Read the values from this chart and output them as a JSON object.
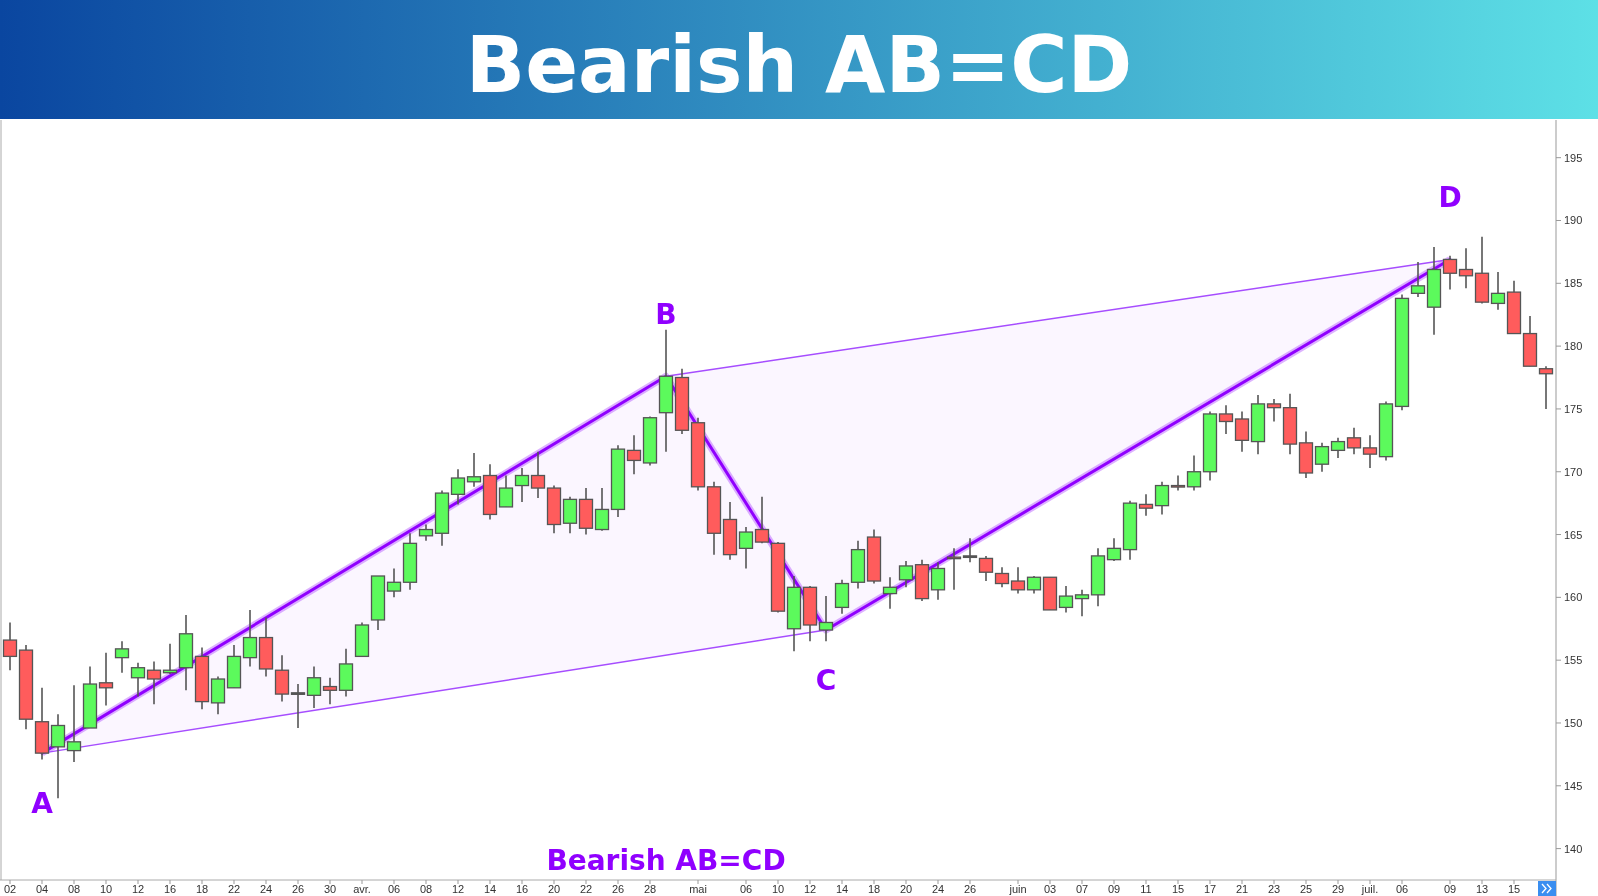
{
  "chart_data": {
    "type": "candlestick",
    "title": "Bearish AB=CD",
    "categories": [
      "02",
      null,
      "04",
      null,
      "08",
      null,
      "10",
      null,
      "12",
      null,
      "16",
      null,
      "18",
      null,
      "22",
      null,
      "24",
      null,
      "26",
      null,
      "30",
      null,
      "avr.",
      null,
      "06",
      null,
      "08",
      null,
      "12",
      null,
      "14",
      null,
      "16",
      null,
      "20",
      null,
      "22",
      null,
      "26",
      null,
      "28",
      null,
      null,
      "mai",
      null,
      null,
      "06",
      null,
      "10",
      null,
      "12",
      null,
      "14",
      null,
      "18",
      null,
      "20",
      null,
      "24",
      null,
      "26",
      null,
      null,
      "juin",
      null,
      "03",
      null,
      "07",
      null,
      "09",
      null,
      "11",
      null,
      "15",
      null,
      "17",
      null,
      "21",
      null,
      "23",
      null,
      "25",
      null,
      "29",
      null,
      "juil.",
      null,
      "06",
      null,
      null,
      "09",
      null,
      "13",
      null,
      "15",
      null,
      null
    ],
    "ohlc": [
      [
        156.6,
        158.0,
        154.2,
        155.3
      ],
      [
        155.8,
        156.2,
        149.5,
        150.3
      ],
      [
        150.1,
        152.8,
        147.1,
        147.6
      ],
      [
        148.1,
        150.7,
        144.0,
        149.8
      ],
      [
        147.8,
        153.0,
        146.9,
        148.5
      ],
      [
        149.6,
        154.5,
        149.6,
        153.1
      ],
      [
        153.2,
        155.6,
        151.4,
        152.8
      ],
      [
        155.2,
        156.5,
        154.0,
        155.9
      ],
      [
        153.6,
        154.8,
        152.1,
        154.4
      ],
      [
        154.2,
        154.9,
        151.5,
        153.5
      ],
      [
        154.0,
        156.3,
        153.9,
        154.2
      ],
      [
        154.4,
        158.6,
        152.6,
        157.1
      ],
      [
        155.3,
        156.0,
        151.1,
        151.7
      ],
      [
        151.6,
        153.7,
        150.7,
        153.5
      ],
      [
        152.8,
        156.2,
        152.8,
        155.3
      ],
      [
        155.2,
        159.0,
        154.5,
        156.8
      ],
      [
        156.8,
        158.4,
        153.7,
        154.3
      ],
      [
        154.2,
        155.4,
        151.7,
        152.3
      ],
      [
        152.4,
        153.1,
        149.6,
        152.4
      ],
      [
        152.2,
        154.5,
        151.2,
        153.6
      ],
      [
        152.9,
        153.6,
        151.5,
        152.6
      ],
      [
        152.6,
        155.9,
        152.1,
        154.7
      ],
      [
        155.3,
        158.0,
        155.3,
        157.8
      ],
      [
        158.2,
        161.7,
        157.4,
        161.7
      ],
      [
        160.5,
        162.3,
        160.0,
        161.2
      ],
      [
        161.2,
        165.1,
        160.6,
        164.3
      ],
      [
        164.9,
        165.8,
        164.5,
        165.4
      ],
      [
        165.1,
        168.5,
        164.1,
        168.3
      ],
      [
        168.2,
        170.2,
        167.4,
        169.5
      ],
      [
        169.2,
        171.5,
        168.8,
        169.6
      ],
      [
        169.7,
        170.6,
        166.2,
        166.6
      ],
      [
        167.2,
        169.7,
        167.2,
        168.7
      ],
      [
        168.9,
        170.3,
        167.6,
        169.7
      ],
      [
        169.7,
        171.6,
        167.9,
        168.7
      ],
      [
        168.7,
        168.9,
        165.1,
        165.8
      ],
      [
        165.9,
        168.0,
        165.1,
        167.8
      ],
      [
        167.8,
        168.7,
        165.0,
        165.5
      ],
      [
        165.4,
        168.7,
        165.3,
        167.0
      ],
      [
        167.0,
        172.1,
        166.4,
        171.8
      ],
      [
        171.7,
        172.9,
        169.8,
        170.9
      ],
      [
        170.7,
        174.4,
        170.5,
        174.3
      ],
      [
        174.7,
        181.3,
        171.6,
        177.6
      ],
      [
        177.5,
        178.2,
        173.0,
        173.3
      ],
      [
        173.9,
        174.3,
        168.5,
        168.8
      ],
      [
        168.8,
        169.2,
        163.4,
        165.1
      ],
      [
        166.2,
        167.6,
        163.0,
        163.4
      ],
      [
        163.9,
        165.6,
        162.3,
        165.2
      ],
      [
        165.4,
        168.0,
        164.3,
        164.4
      ],
      [
        164.3,
        164.4,
        158.8,
        158.9
      ],
      [
        157.5,
        161.7,
        155.7,
        160.8
      ],
      [
        160.8,
        160.9,
        156.5,
        157.8
      ],
      [
        157.4,
        160.1,
        156.5,
        158.0
      ],
      [
        159.2,
        161.4,
        158.7,
        161.1
      ],
      [
        161.2,
        164.5,
        160.7,
        163.8
      ],
      [
        164.8,
        165.4,
        161.1,
        161.3
      ],
      [
        160.3,
        161.6,
        159.1,
        160.8
      ],
      [
        161.4,
        162.9,
        160.8,
        162.5
      ],
      [
        162.6,
        163.0,
        159.7,
        159.9
      ],
      [
        160.6,
        162.8,
        159.8,
        162.3
      ],
      [
        163.2,
        163.9,
        160.6,
        163.1
      ],
      [
        163.3,
        164.7,
        162.8,
        163.3
      ],
      [
        163.1,
        163.3,
        161.3,
        162.0
      ],
      [
        161.9,
        162.4,
        160.8,
        161.1
      ],
      [
        161.3,
        162.4,
        160.3,
        160.6
      ],
      [
        160.6,
        161.7,
        160.3,
        161.6
      ],
      [
        161.6,
        161.6,
        159.0,
        159.0
      ],
      [
        159.2,
        160.9,
        158.8,
        160.1
      ],
      [
        159.9,
        160.6,
        158.5,
        160.2
      ],
      [
        160.2,
        163.9,
        159.3,
        163.3
      ],
      [
        163.0,
        164.7,
        162.9,
        163.9
      ],
      [
        163.8,
        167.7,
        163.0,
        167.5
      ],
      [
        167.4,
        168.2,
        166.5,
        167.1
      ],
      [
        167.3,
        169.2,
        166.6,
        168.9
      ],
      [
        168.9,
        169.7,
        168.5,
        168.8
      ],
      [
        168.8,
        171.3,
        168.5,
        170.0
      ],
      [
        170.0,
        174.8,
        169.3,
        174.6
      ],
      [
        174.6,
        175.3,
        173.0,
        174.0
      ],
      [
        174.2,
        174.8,
        171.6,
        172.5
      ],
      [
        172.4,
        176.1,
        171.4,
        175.4
      ],
      [
        175.4,
        175.8,
        174.0,
        175.1
      ],
      [
        175.1,
        176.2,
        171.4,
        172.2
      ],
      [
        172.3,
        173.2,
        169.5,
        169.9
      ],
      [
        170.6,
        172.3,
        170.0,
        172.0
      ],
      [
        171.7,
        172.7,
        171.1,
        172.4
      ],
      [
        172.7,
        173.5,
        171.4,
        171.9
      ],
      [
        171.9,
        172.9,
        170.3,
        171.4
      ],
      [
        171.2,
        175.6,
        170.9,
        175.4
      ],
      [
        175.2,
        184.1,
        174.9,
        183.8
      ],
      [
        184.2,
        186.7,
        183.9,
        184.8
      ],
      [
        183.1,
        187.9,
        180.9,
        186.1
      ],
      [
        186.9,
        187.2,
        184.5,
        185.8
      ],
      [
        186.1,
        187.8,
        184.6,
        185.6
      ],
      [
        185.8,
        188.7,
        183.4,
        183.5
      ],
      [
        183.4,
        185.9,
        182.9,
        184.2
      ],
      [
        184.3,
        185.2,
        181.0,
        181.0
      ],
      [
        181.0,
        182.4,
        178.4,
        178.4
      ],
      [
        178.2,
        178.4,
        175.0,
        177.8
      ]
    ],
    "colors": [
      "#ff5c5c",
      "#ff5c5c",
      "#ff5c5c",
      "#5cfa5c",
      "#5cfa5c",
      "#5cfa5c",
      "#ff5c5c",
      "#5cfa5c",
      "#5cfa5c",
      "#ff5c5c",
      "#5cfa5c",
      "#5cfa5c",
      "#ff5c5c",
      "#5cfa5c",
      "#5cfa5c",
      "#5cfa5c",
      "#ff5c5c",
      "#ff5c5c",
      "#555555",
      "#5cfa5c",
      "#ff5c5c",
      "#5cfa5c",
      "#5cfa5c",
      "#5cfa5c",
      "#5cfa5c",
      "#5cfa5c",
      "#5cfa5c",
      "#5cfa5c",
      "#5cfa5c",
      "#5cfa5c",
      "#ff5c5c",
      "#5cfa5c",
      "#5cfa5c",
      "#ff5c5c",
      "#ff5c5c",
      "#5cfa5c",
      "#ff5c5c",
      "#5cfa5c",
      "#5cfa5c",
      "#ff5c5c",
      "#5cfa5c",
      "#5cfa5c",
      "#ff5c5c",
      "#ff5c5c",
      "#ff5c5c",
      "#ff5c5c",
      "#5cfa5c",
      "#ff5c5c",
      "#ff5c5c",
      "#5cfa5c",
      "#ff5c5c",
      "#5cfa5c",
      "#5cfa5c",
      "#5cfa5c",
      "#ff5c5c",
      "#5cfa5c",
      "#5cfa5c",
      "#ff5c5c",
      "#5cfa5c",
      "#ff5c5c",
      "#555555",
      "#ff5c5c",
      "#ff5c5c",
      "#ff5c5c",
      "#5cfa5c",
      "#ff5c5c",
      "#5cfa5c",
      "#5cfa5c",
      "#5cfa5c",
      "#5cfa5c",
      "#5cfa5c",
      "#ff5c5c",
      "#5cfa5c",
      "#ff5c5c",
      "#5cfa5c",
      "#5cfa5c",
      "#ff5c5c",
      "#ff5c5c",
      "#5cfa5c",
      "#ff5c5c",
      "#ff5c5c",
      "#ff5c5c",
      "#5cfa5c",
      "#5cfa5c",
      "#ff5c5c",
      "#ff5c5c",
      "#5cfa5c",
      "#5cfa5c",
      "#5cfa5c",
      "#5cfa5c",
      "#ff5c5c",
      "#ff5c5c",
      "#ff5c5c",
      "#5cfa5c",
      "#ff5c5c",
      "#ff5c5c",
      "#ff5c5c"
    ],
    "series": [
      {
        "type": "line",
        "color": "#9000ff",
        "values": [
          null,
          null,
          147.6,
          null,
          null,
          null,
          null,
          null,
          null,
          null,
          null,
          null,
          null,
          null,
          null,
          null,
          null,
          null,
          null,
          null,
          null,
          null,
          null,
          null,
          null,
          null,
          null,
          null,
          null,
          null,
          null,
          null,
          null,
          null,
          null,
          null,
          null,
          null,
          null,
          null,
          null,
          177.6,
          null,
          null,
          null,
          null,
          null,
          null,
          null,
          null,
          null,
          157.4,
          null,
          null,
          null,
          null,
          null,
          null,
          null,
          null,
          null,
          null,
          null,
          null,
          null,
          null,
          null,
          null,
          null,
          null,
          null,
          null,
          null,
          null,
          null,
          null,
          null,
          null,
          null,
          null,
          null,
          null,
          null,
          null,
          null,
          null,
          null,
          null,
          null,
          null,
          186.9,
          null,
          null,
          null,
          null,
          null,
          null
        ]
      },
      {
        "type": "line",
        "color": "#a64dff",
        "values": [
          null,
          null,
          147.6,
          null,
          null,
          null,
          null,
          null,
          null,
          null,
          null,
          null,
          null,
          null,
          null,
          null,
          null,
          null,
          null,
          null,
          null,
          null,
          null,
          null,
          null,
          null,
          null,
          null,
          null,
          null,
          null,
          null,
          null,
          null,
          null,
          null,
          null,
          null,
          null,
          null,
          null,
          null,
          null,
          null,
          null,
          null,
          null,
          null,
          null,
          null,
          null,
          157.4,
          null,
          null,
          null,
          null,
          null,
          null,
          null,
          null,
          null,
          null,
          null,
          null,
          null,
          null,
          null,
          null,
          null,
          null,
          null,
          null,
          null,
          null,
          null,
          null,
          null,
          null,
          null,
          null,
          null,
          null,
          null,
          null,
          null,
          null,
          null,
          null,
          null,
          null,
          null,
          null,
          null,
          null,
          null,
          null,
          null
        ]
      },
      {
        "type": "line",
        "color": "#a64dff",
        "values": [
          null,
          null,
          null,
          null,
          null,
          null,
          null,
          null,
          null,
          null,
          null,
          null,
          null,
          null,
          null,
          null,
          null,
          null,
          null,
          null,
          null,
          null,
          null,
          null,
          null,
          null,
          null,
          null,
          null,
          null,
          null,
          null,
          null,
          null,
          null,
          null,
          null,
          null,
          null,
          null,
          null,
          177.6,
          null,
          null,
          null,
          null,
          null,
          null,
          null,
          null,
          null,
          null,
          null,
          null,
          null,
          null,
          null,
          null,
          null,
          null,
          null,
          null,
          null,
          null,
          null,
          null,
          null,
          null,
          null,
          null,
          null,
          null,
          null,
          null,
          null,
          null,
          null,
          null,
          null,
          null,
          null,
          null,
          null,
          null,
          null,
          null,
          null,
          null,
          null,
          null,
          186.9,
          null,
          null,
          null,
          null,
          null,
          null
        ]
      }
    ],
    "annotations": [
      "A",
      "B",
      "C",
      "D",
      "Bearish AB=CD"
    ],
    "ylim": [
      137.5,
      198
    ],
    "yticks": [
      140,
      145,
      150,
      155,
      160,
      165,
      170,
      175,
      180,
      185,
      190,
      195
    ]
  }
}
